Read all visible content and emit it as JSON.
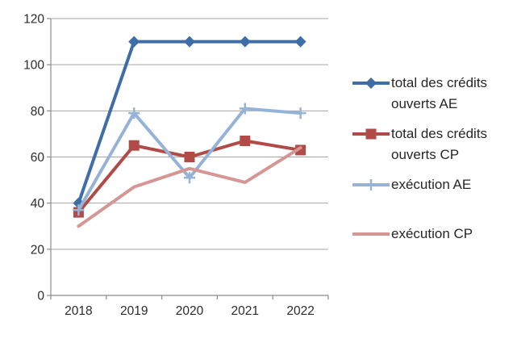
{
  "chart_data": {
    "type": "line",
    "title": "",
    "xlabel": "",
    "ylabel": "",
    "categories": [
      "2018",
      "2019",
      "2020",
      "2021",
      "2022"
    ],
    "series": [
      {
        "name": "total des crédits ouverts AE",
        "marker": "diamond",
        "color": "#3E6DA8",
        "values": [
          40,
          110,
          110,
          110,
          110
        ]
      },
      {
        "name": "total des crédits ouverts CP",
        "marker": "square",
        "color": "#B04B47",
        "values": [
          36,
          65,
          60,
          67,
          63
        ]
      },
      {
        "name": "exécution AE",
        "marker": "plus",
        "color": "#95B3D7",
        "values": [
          37,
          79,
          51,
          81,
          79
        ]
      },
      {
        "name": "exécution CP",
        "marker": "none",
        "color": "#D59694",
        "values": [
          30,
          47,
          55,
          49,
          64
        ]
      }
    ],
    "ylim": [
      0,
      120
    ],
    "ytick": 20,
    "grid": true,
    "legend_position": "right",
    "colors": {
      "gridline": "#A6A6A6",
      "axis": "#8C8C8C",
      "text": "#2b2b2b",
      "background": "#ffffff"
    }
  }
}
